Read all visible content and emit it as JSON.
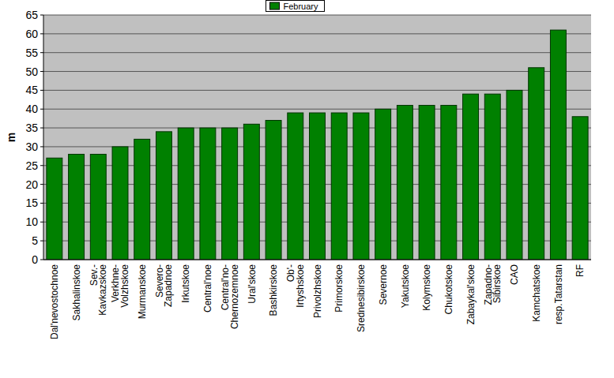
{
  "chart_data": {
    "type": "bar",
    "y_label": "m",
    "categories": [
      "Dal'nevostochnoe",
      "Sakhalinskoe",
      "Sev.-\nKavkazskoe",
      "Verkhne-\nVolzhskoe",
      "Murmanskoe",
      "Severo-\nZapadnoe",
      "Irkutskoe",
      "Central'noe",
      "Central'no-\nChernozemnoe",
      "Ural'skoe",
      "Bashkirskoe",
      "Ob'-\nIrtyshskoe",
      "Privolzhskoe",
      "Primorskoe",
      "Srednesibirskoe",
      "Severnoe",
      "Yakutskoe",
      "Kolymskoe",
      "Chukotskoe",
      "Zabaykal'skoe",
      "Zapadno-\nSibirskoe",
      "CAO",
      "Kamchatskoe",
      "resp.Tatarstan",
      "RF"
    ],
    "series": [
      {
        "name": "February",
        "color": "#008000",
        "values": [
          27,
          28,
          28,
          30,
          32,
          34,
          35,
          35,
          35,
          36,
          37,
          39,
          39,
          39,
          39,
          40,
          41,
          41,
          41,
          44,
          44,
          45,
          51,
          61,
          38
        ]
      }
    ],
    "ylim": [
      0,
      65
    ],
    "yticks": [
      0,
      5,
      10,
      15,
      20,
      25,
      30,
      35,
      40,
      45,
      50,
      55,
      60,
      65
    ],
    "grid": true,
    "legend": "top"
  }
}
